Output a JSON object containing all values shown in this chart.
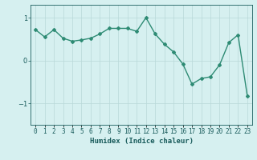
{
  "x": [
    0,
    1,
    2,
    3,
    4,
    5,
    6,
    7,
    8,
    9,
    10,
    11,
    12,
    13,
    14,
    15,
    16,
    17,
    18,
    19,
    20,
    21,
    22,
    23
  ],
  "y": [
    0.72,
    0.55,
    0.72,
    0.52,
    0.45,
    0.48,
    0.52,
    0.62,
    0.75,
    0.75,
    0.75,
    0.68,
    1.0,
    0.62,
    0.38,
    0.2,
    -0.08,
    -0.55,
    -0.42,
    -0.38,
    -0.1,
    0.42,
    0.6,
    -0.82
  ],
  "line_color": "#2e8b74",
  "marker": "D",
  "marker_size": 2.0,
  "bg_color": "#d6f0f0",
  "grid_color": "#b8d8d8",
  "xlabel": "Humidex (Indice chaleur)",
  "ylim": [
    -1.5,
    1.3
  ],
  "xlim": [
    -0.5,
    23.5
  ],
  "yticks": [
    -1,
    0,
    1
  ],
  "xtick_labels": [
    "0",
    "1",
    "2",
    "3",
    "4",
    "5",
    "6",
    "7",
    "8",
    "9",
    "10",
    "11",
    "12",
    "13",
    "14",
    "15",
    "16",
    "17",
    "18",
    "19",
    "20",
    "21",
    "22",
    "23"
  ],
  "linewidth": 1.0,
  "font_color": "#1a5c5c",
  "tick_fontsize": 5.5,
  "xlabel_fontsize": 6.5
}
